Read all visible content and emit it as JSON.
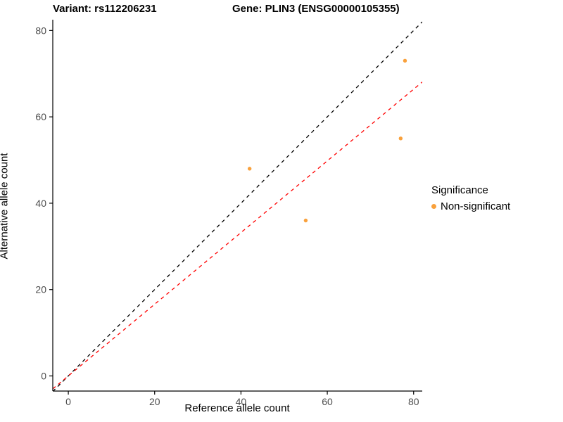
{
  "titles": {
    "left": "Variant: rs112206231",
    "right": "Gene: PLIN3 (ENSG00000105355)"
  },
  "chart_data": {
    "type": "scatter",
    "title_left": "Variant: rs112206231",
    "title_right": "Gene: PLIN3 (ENSG00000105355)",
    "xlabel": "Reference allele count",
    "ylabel": "Alternative allele count",
    "xlim": [
      -3.6,
      82.0
    ],
    "ylim": [
      -3.5,
      82.5
    ],
    "xticks": [
      0,
      20,
      40,
      60,
      80
    ],
    "yticks": [
      0,
      20,
      40,
      60,
      80
    ],
    "grid": false,
    "legend_position": "right",
    "points": [
      {
        "x": 42,
        "y": 48
      },
      {
        "x": 55,
        "y": 36
      },
      {
        "x": 77,
        "y": 55
      },
      {
        "x": 78,
        "y": 73
      }
    ],
    "point_color": "#F9A13C",
    "lines": [
      {
        "name": "identity",
        "slope": 1.0,
        "intercept": 0,
        "color": "#000000",
        "style": "dashed"
      },
      {
        "name": "fit",
        "slope": 0.83,
        "intercept": 0,
        "color": "#FF0000",
        "style": "dashed"
      }
    ],
    "legend": {
      "title": "Significance",
      "items": [
        {
          "label": "Non-significant",
          "color": "#F9A13C"
        }
      ]
    },
    "axis_color": "#000000",
    "tick_label_color": "#4D4D4D"
  }
}
